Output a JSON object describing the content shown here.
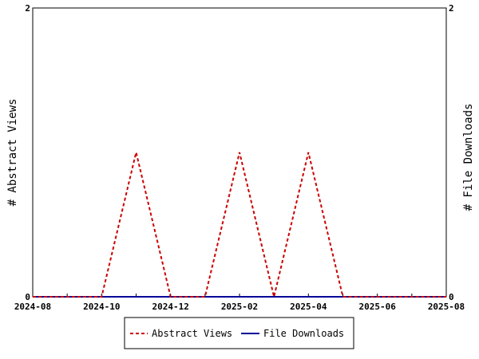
{
  "chart_data": {
    "type": "line",
    "ylabel_left": "# Abstract Views",
    "ylabel_right": "# File Downloads",
    "x_ticks": [
      "2024-08",
      "2024-10",
      "2024-12",
      "2025-02",
      "2025-04",
      "2025-06",
      "2025-08"
    ],
    "x": [
      "2024-08",
      "2024-09",
      "2024-10",
      "2024-11",
      "2024-12",
      "2025-01",
      "2025-02",
      "2025-03",
      "2025-04",
      "2025-05",
      "2025-06",
      "2025-07",
      "2025-08"
    ],
    "xlim": [
      "2024-08",
      "2025-08"
    ],
    "ylim_left": [
      0,
      2
    ],
    "ylim_right": [
      0,
      2
    ],
    "y_ticks_left": [
      "0",
      "2"
    ],
    "y_ticks_right": [
      "0",
      "2"
    ],
    "series": [
      {
        "name": "Abstract Views",
        "axis": "left",
        "style": "dashed",
        "color": "#cc0000",
        "values": [
          0,
          0,
          0,
          1,
          0,
          0,
          1,
          0,
          1,
          0,
          0,
          0,
          0
        ]
      },
      {
        "name": "File Downloads",
        "axis": "right",
        "style": "solid",
        "color": "#000099",
        "values": [
          0,
          0,
          0,
          0,
          0,
          0,
          0,
          0,
          0,
          0,
          0,
          0,
          0
        ]
      }
    ],
    "grid": false,
    "legend": "bottom-center"
  }
}
